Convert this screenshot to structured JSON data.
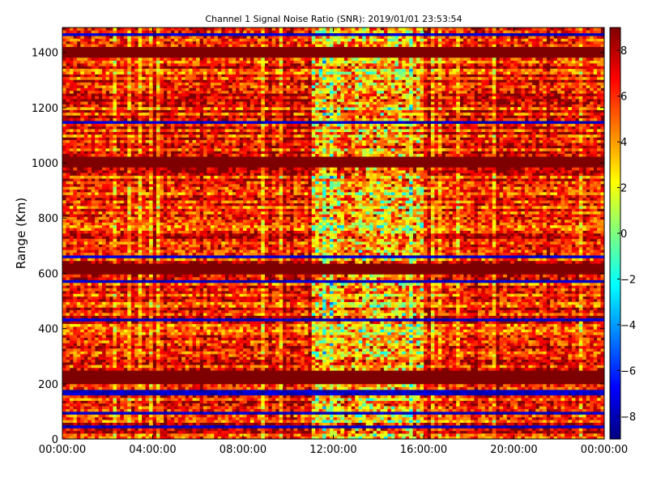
{
  "chart_data": {
    "type": "heatmap",
    "title": "Channel 1 Signal Noise Ratio (SNR): 2019/01/01 23:53:54",
    "xlabel": "",
    "ylabel": "Range (Km)",
    "x_ticks": [
      "00:00:00",
      "04:00:00",
      "08:00:00",
      "12:00:00",
      "16:00:00",
      "20:00:00",
      "00:00:00"
    ],
    "x_range_hours": [
      0,
      24
    ],
    "y_ticks": [
      0,
      200,
      400,
      600,
      800,
      1000,
      1200,
      1400
    ],
    "ylim": [
      0,
      1490
    ],
    "colorbar": {
      "label": "",
      "ticks": [
        -8,
        -6,
        -4,
        -2,
        0,
        2,
        4,
        6,
        8
      ],
      "range": [
        -9,
        9
      ],
      "colormap": "jet"
    },
    "grid": false,
    "colormap_stops": [
      "#00007f",
      "#0000ff",
      "#007fff",
      "#00ffff",
      "#7fff7f",
      "#ffff00",
      "#ff7f00",
      "#ff0000",
      "#7f0000"
    ],
    "z_summary": {
      "description_levels": "mostly high SNR (6 to 9) with horizontal range bands",
      "high_bands_km": [
        [
          980,
          1020
        ],
        [
          1380,
          1420
        ],
        [
          600,
          640
        ],
        [
          200,
          250
        ]
      ],
      "low_bands_km": [
        [
          1460,
          1475
        ],
        [
          1140,
          1150
        ],
        [
          660,
          670
        ],
        [
          570,
          575
        ],
        [
          430,
          440
        ],
        [
          385,
          390
        ],
        [
          160,
          175
        ],
        [
          90,
          100
        ],
        [
          40,
          50
        ]
      ],
      "variable_time_window_hours": [
        11,
        16
      ]
    }
  }
}
